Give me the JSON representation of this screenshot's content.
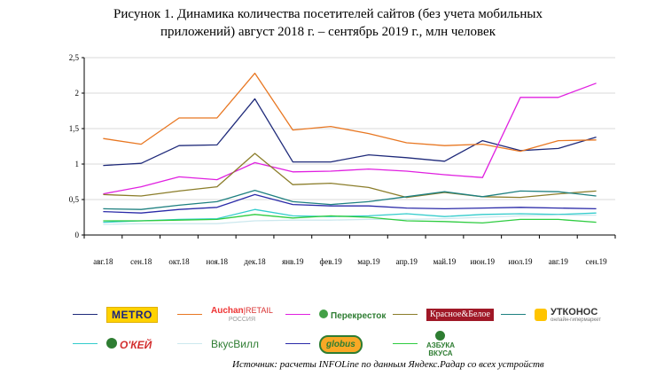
{
  "title_lines": [
    "Рисунок 1. Динамика количества посетителей сайтов (без учета мобильных",
    "приложений) август 2018 г. – сентябрь 2019 г., млн человек"
  ],
  "source": "Источник:  расчеты INFOLine по данным Яндекс.Радар со всех устройств",
  "legend": [
    {
      "key": "metro",
      "logo_text": "METRO",
      "color": "#1f2a7a"
    },
    {
      "key": "auchan",
      "logo_text": "Auchan",
      "logo_text2": "RETAIL",
      "logo_sub": "РОССИЯ",
      "color": "#e87722"
    },
    {
      "key": "perekrestok",
      "logo_text": "Перекресток",
      "color": "#e020e0"
    },
    {
      "key": "krasnoe",
      "logo_text": "Красное&Белое",
      "color": "#8b7d2a"
    },
    {
      "key": "utkonos",
      "logo_text": "УТКОНОС",
      "logo_sub": "онлайн-гипермаркет",
      "color": "#1e8080"
    },
    {
      "key": "okey",
      "logo_text": "О'КЕЙ",
      "color": "#33cccc"
    },
    {
      "key": "vkusvill",
      "logo_text": "ВкусВилл",
      "color": "#cce8ee"
    },
    {
      "key": "globus",
      "logo_text": "globus",
      "color": "#2a2aa8"
    },
    {
      "key": "azbuka",
      "logo_text": "АЗБУКА",
      "logo_text2": "ВКУСА",
      "color": "#2ecc40"
    }
  ],
  "chart_data": {
    "type": "line",
    "title": "Рисунок 1. Динамика количества посетителей сайтов (без учета мобильных приложений) август 2018 г. – сентябрь 2019 г., млн человек",
    "xlabel": "",
    "ylabel": "",
    "ylim": [
      0,
      2.5
    ],
    "y_ticks": [
      "0",
      "0,5",
      "1",
      "1,5",
      "2",
      "2,5"
    ],
    "categories": [
      "авг.18",
      "сен.18",
      "окт.18",
      "ноя.18",
      "дек.18",
      "янв.19",
      "фев.19",
      "мар.19",
      "апр.19",
      "май.19",
      "июн.19",
      "июл.19",
      "авг.19",
      "сен.19"
    ],
    "grid": true,
    "legend_position": "bottom",
    "series": [
      {
        "name": "metro",
        "color": "#1f2a7a",
        "values": [
          0.98,
          1.01,
          1.26,
          1.27,
          1.92,
          1.03,
          1.03,
          1.13,
          1.09,
          1.04,
          1.33,
          1.19,
          1.22,
          1.38
        ]
      },
      {
        "name": "auchan",
        "color": "#e87722",
        "values": [
          1.36,
          1.28,
          1.65,
          1.65,
          2.28,
          1.48,
          1.53,
          1.43,
          1.3,
          1.26,
          1.28,
          1.18,
          1.33,
          1.34
        ]
      },
      {
        "name": "perekrestok",
        "color": "#e020e0",
        "values": [
          0.58,
          0.68,
          0.82,
          0.78,
          1.02,
          0.89,
          0.9,
          0.93,
          0.9,
          0.85,
          0.81,
          1.94,
          1.94,
          2.14
        ]
      },
      {
        "name": "krasnoe",
        "color": "#8b7d2a",
        "values": [
          0.57,
          0.55,
          0.62,
          0.68,
          1.15,
          0.71,
          0.73,
          0.67,
          0.53,
          0.6,
          0.54,
          0.53,
          0.58,
          0.62
        ]
      },
      {
        "name": "utkonos",
        "color": "#1e8080",
        "values": [
          0.37,
          0.36,
          0.42,
          0.47,
          0.63,
          0.47,
          0.43,
          0.47,
          0.54,
          0.61,
          0.54,
          0.62,
          0.61,
          0.55
        ]
      },
      {
        "name": "okey",
        "color": "#33cccc",
        "values": [
          0.18,
          0.2,
          0.22,
          0.23,
          0.36,
          0.27,
          0.26,
          0.27,
          0.3,
          0.26,
          0.29,
          0.3,
          0.29,
          0.31
        ]
      },
      {
        "name": "vkusvill",
        "color": "#cce8ee",
        "values": [
          0.15,
          0.16,
          0.16,
          0.16,
          0.2,
          0.21,
          0.21,
          0.22,
          0.22,
          0.23,
          0.25,
          0.27,
          0.28,
          0.28
        ]
      },
      {
        "name": "globus",
        "color": "#2a2aa8",
        "values": [
          0.33,
          0.31,
          0.36,
          0.39,
          0.57,
          0.43,
          0.41,
          0.41,
          0.38,
          0.37,
          0.38,
          0.39,
          0.38,
          0.37
        ]
      },
      {
        "name": "azbuka",
        "color": "#2ecc40",
        "values": [
          0.2,
          0.2,
          0.21,
          0.22,
          0.29,
          0.24,
          0.27,
          0.25,
          0.2,
          0.19,
          0.17,
          0.22,
          0.22,
          0.18
        ]
      }
    ]
  }
}
